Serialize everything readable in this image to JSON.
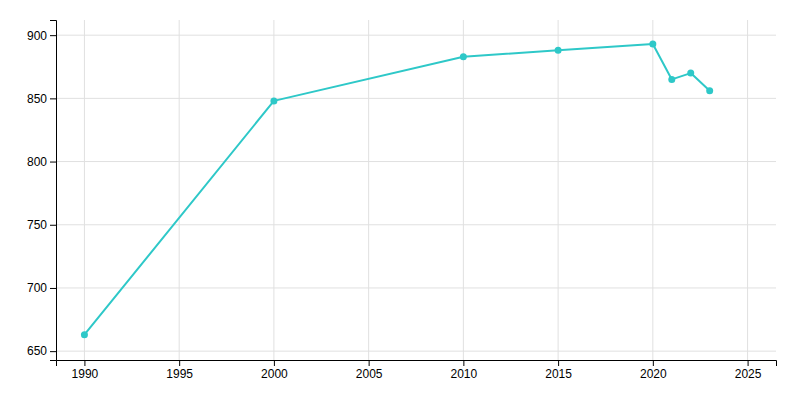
{
  "chart_data": {
    "type": "line",
    "x": [
      1990,
      2000,
      2010,
      2015,
      2020,
      2021,
      2022,
      2023
    ],
    "values": [
      663,
      848,
      883,
      888,
      893,
      865,
      870,
      856
    ],
    "color": "#2ec8c8",
    "marker": "circle",
    "xlim": [
      1988.5,
      2026.5
    ],
    "ylim": [
      643,
      912
    ],
    "xticks": [
      1990,
      1995,
      2000,
      2005,
      2010,
      2015,
      2020,
      2025
    ],
    "yticks": [
      650,
      700,
      750,
      800,
      850,
      900
    ],
    "grid": true
  }
}
